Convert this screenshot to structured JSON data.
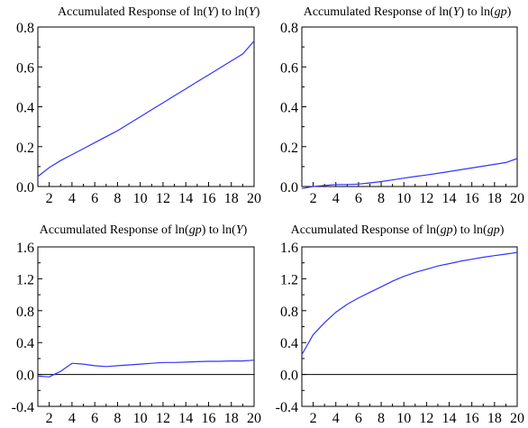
{
  "chart_data": [
    {
      "type": "line",
      "title_parts": [
        {
          "text": "Accumulated Response of ln(",
          "italic": false
        },
        {
          "text": "Y",
          "italic": true
        },
        {
          "text": ") to ln(",
          "italic": false
        },
        {
          "text": "Y",
          "italic": true
        },
        {
          "text": ")",
          "italic": false
        }
      ],
      "x": [
        1,
        2,
        3,
        4,
        5,
        6,
        7,
        8,
        9,
        10,
        11,
        12,
        13,
        14,
        15,
        16,
        17,
        18,
        19,
        20
      ],
      "series": [
        {
          "color": "#3333ff",
          "values": [
            0.05,
            0.095,
            0.13,
            0.16,
            0.19,
            0.22,
            0.25,
            0.28,
            0.315,
            0.35,
            0.385,
            0.42,
            0.455,
            0.49,
            0.525,
            0.56,
            0.595,
            0.63,
            0.665,
            0.73
          ]
        }
      ],
      "xlim": [
        1,
        20
      ],
      "ylim": [
        0.0,
        0.8
      ],
      "xticks": [
        2,
        4,
        6,
        8,
        10,
        12,
        14,
        16,
        18,
        20
      ],
      "yticks": [
        "0.0",
        "0.2",
        "0.4",
        "0.6",
        "0.8"
      ],
      "zero_line": false
    },
    {
      "type": "line",
      "title_parts": [
        {
          "text": "Accumulated Response of ln(",
          "italic": false
        },
        {
          "text": "Y",
          "italic": true
        },
        {
          "text": ") to ln(",
          "italic": false
        },
        {
          "text": "gp",
          "italic": true
        },
        {
          "text": ")",
          "italic": false
        }
      ],
      "x": [
        1,
        2,
        3,
        4,
        5,
        6,
        7,
        8,
        9,
        10,
        11,
        12,
        13,
        14,
        15,
        16,
        17,
        18,
        19,
        20
      ],
      "series": [
        {
          "color": "#3333ff",
          "values": [
            -0.01,
            0.0,
            0.005,
            0.01,
            0.01,
            0.012,
            0.018,
            0.025,
            0.033,
            0.042,
            0.05,
            0.058,
            0.066,
            0.075,
            0.084,
            0.093,
            0.102,
            0.111,
            0.12,
            0.14
          ]
        }
      ],
      "xlim": [
        1,
        20
      ],
      "ylim": [
        0.0,
        0.8
      ],
      "xticks": [
        2,
        4,
        6,
        8,
        10,
        12,
        14,
        16,
        18,
        20
      ],
      "yticks": [
        "0.0",
        "0.2",
        "0.4",
        "0.6",
        "0.8"
      ],
      "zero_line": false
    },
    {
      "type": "line",
      "title_parts": [
        {
          "text": "Accumulated Response of ln(",
          "italic": false
        },
        {
          "text": "gp",
          "italic": true
        },
        {
          "text": ") to ln(",
          "italic": false
        },
        {
          "text": "Y",
          "italic": true
        },
        {
          "text": ")",
          "italic": false
        }
      ],
      "x": [
        1,
        2,
        3,
        4,
        5,
        6,
        7,
        8,
        9,
        10,
        11,
        12,
        13,
        14,
        15,
        16,
        17,
        18,
        19,
        20
      ],
      "series": [
        {
          "color": "#3333ff",
          "values": [
            -0.02,
            -0.03,
            0.04,
            0.14,
            0.13,
            0.11,
            0.1,
            0.11,
            0.12,
            0.13,
            0.14,
            0.15,
            0.15,
            0.155,
            0.16,
            0.165,
            0.165,
            0.17,
            0.17,
            0.18
          ]
        }
      ],
      "xlim": [
        1,
        20
      ],
      "ylim": [
        -0.4,
        1.6
      ],
      "xticks": [
        2,
        4,
        6,
        8,
        10,
        12,
        14,
        16,
        18,
        20
      ],
      "yticks": [
        "-0.4",
        "0.0",
        "0.4",
        "0.8",
        "1.2",
        "1.6"
      ],
      "zero_line": true
    },
    {
      "type": "line",
      "title_parts": [
        {
          "text": "Accumulated Response of ln(",
          "italic": false
        },
        {
          "text": "gp",
          "italic": true
        },
        {
          "text": ") to ln(",
          "italic": false
        },
        {
          "text": "gp",
          "italic": true
        },
        {
          "text": ")",
          "italic": false
        }
      ],
      "x": [
        1,
        2,
        3,
        4,
        5,
        6,
        7,
        8,
        9,
        10,
        11,
        12,
        13,
        14,
        15,
        16,
        17,
        18,
        19,
        20
      ],
      "series": [
        {
          "color": "#3333ff",
          "values": [
            0.25,
            0.5,
            0.65,
            0.78,
            0.88,
            0.96,
            1.03,
            1.1,
            1.17,
            1.23,
            1.28,
            1.32,
            1.36,
            1.39,
            1.42,
            1.445,
            1.47,
            1.49,
            1.51,
            1.53
          ]
        }
      ],
      "xlim": [
        1,
        20
      ],
      "ylim": [
        -0.4,
        1.6
      ],
      "xticks": [
        2,
        4,
        6,
        8,
        10,
        12,
        14,
        16,
        18,
        20
      ],
      "yticks": [
        "-0.4",
        "0.0",
        "0.4",
        "0.8",
        "1.2",
        "1.6"
      ],
      "zero_line": true
    }
  ]
}
